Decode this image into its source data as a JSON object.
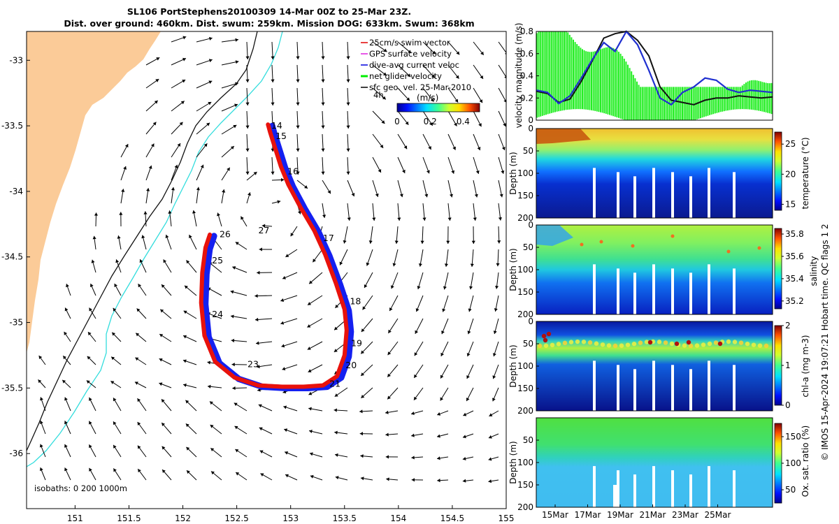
{
  "header": {
    "title_line1": "SL106 PortStephens20100309 14-Mar 00Z to 25-Mar 23Z.",
    "title_line2": "Dist. over ground: 460km. Dist. swum: 259km. Mission DOG: 633km. Swum: 368km"
  },
  "credit": "© IMOS 15-Apr-2024 19:07:21 Hobart time. QC flags 1  2",
  "colors": {
    "land": "#fbcb98",
    "track_red": "#e8120c",
    "track_blue": "#1420f0",
    "velocity_green": "#22ee22",
    "velocity_blue": "#2030d0",
    "velocity_black": "#111111",
    "isobath_200": "#111111",
    "isobath_1000": "#33dddd"
  },
  "chart_data": [
    {
      "type": "map",
      "xlim": [
        150.55,
        155.0
      ],
      "ylim": [
        -36.42,
        -32.78
      ],
      "xticks": [
        "151",
        "151.5",
        "152",
        "152.5",
        "153",
        "153.5",
        "154",
        "154.5",
        "155"
      ],
      "yticks": [
        "-33",
        "-33.5",
        "-34",
        "-34.5",
        "-35",
        "-35.5",
        "-36"
      ],
      "legend": [
        {
          "label": "25cm/s swim vector",
          "color": "#e00000"
        },
        {
          "label": "GPS surface velocity",
          "color": "#e020e0"
        },
        {
          "label": "dive-avg current veloc",
          "color": "#0000dd"
        },
        {
          "label": "net glider velocity",
          "color": "#00ee00"
        },
        {
          "label": "sfc geo. vel. 25-Mar-2010",
          "color": "#000000"
        }
      ],
      "legend_extra": "4h",
      "colorbar": {
        "label": "(m/s)",
        "ticks": [
          "0",
          "0.2",
          "0.4"
        ],
        "range": [
          0,
          0.5
        ]
      },
      "isobaths_label": "isobaths: 0   200  1000m",
      "track": [
        [
          152.79,
          -33.49
        ],
        [
          152.81,
          -33.55
        ],
        [
          152.86,
          -33.68
        ],
        [
          152.91,
          -33.81
        ],
        [
          152.98,
          -33.95
        ],
        [
          153.09,
          -34.12
        ],
        [
          153.22,
          -34.3
        ],
        [
          153.32,
          -34.48
        ],
        [
          153.42,
          -34.7
        ],
        [
          153.5,
          -34.9
        ],
        [
          153.52,
          -35.06
        ],
        [
          153.5,
          -35.25
        ],
        [
          153.43,
          -35.41
        ],
        [
          153.3,
          -35.48
        ],
        [
          153.12,
          -35.49
        ],
        [
          152.92,
          -35.49
        ],
        [
          152.7,
          -35.48
        ],
        [
          152.48,
          -35.42
        ],
        [
          152.3,
          -35.3
        ],
        [
          152.2,
          -35.1
        ],
        [
          152.17,
          -34.85
        ],
        [
          152.18,
          -34.62
        ],
        [
          152.21,
          -34.43
        ],
        [
          152.25,
          -34.33
        ]
      ],
      "day_labels": [
        {
          "day": "14",
          "lon": 152.82,
          "lat": -33.52
        },
        {
          "day": "15",
          "lon": 152.86,
          "lat": -33.6
        },
        {
          "day": "16",
          "lon": 152.97,
          "lat": -33.87
        },
        {
          "day": "17",
          "lon": 153.3,
          "lat": -34.38
        },
        {
          "day": "18",
          "lon": 153.55,
          "lat": -34.86
        },
        {
          "day": "19",
          "lon": 153.56,
          "lat": -35.18
        },
        {
          "day": "20",
          "lon": 153.51,
          "lat": -35.35
        },
        {
          "day": "21",
          "lon": 153.36,
          "lat": -35.49
        },
        {
          "day": "23",
          "lon": 152.6,
          "lat": -35.34
        },
        {
          "day": "24",
          "lon": 152.27,
          "lat": -34.96
        },
        {
          "day": "25",
          "lon": 152.27,
          "lat": -34.55
        },
        {
          "day": "26",
          "lon": 152.34,
          "lat": -34.35
        },
        {
          "day": "27",
          "lon": 152.7,
          "lat": -34.32
        }
      ]
    },
    {
      "type": "line",
      "ylabel": "velocity magnitude (m/s)",
      "xlim": [
        14,
        26
      ],
      "ylim": [
        0,
        0.8
      ],
      "yticks": [
        "0",
        "0.2",
        "0.4",
        "0.6",
        "0.8"
      ],
      "series": [
        {
          "color": "#2030d0",
          "values": [
            0.27,
            0.25,
            0.15,
            0.22,
            0.38,
            0.55,
            0.7,
            0.62,
            0.8,
            0.68,
            0.45,
            0.2,
            0.14,
            0.25,
            0.3,
            0.38,
            0.36,
            0.28,
            0.25,
            0.27,
            0.26,
            0.25
          ]
        },
        {
          "color": "#111111",
          "values": [
            0.26,
            0.24,
            0.16,
            0.19,
            0.35,
            0.54,
            0.74,
            0.78,
            0.8,
            0.72,
            0.58,
            0.3,
            0.18,
            0.16,
            0.14,
            0.18,
            0.2,
            0.2,
            0.22,
            0.21,
            0.2,
            0.21
          ]
        }
      ]
    },
    {
      "type": "heatmap",
      "ylabel": "Depth (m)",
      "cbar_label": "temperature (°C)",
      "yticks": [
        "0",
        "50",
        "100",
        "150",
        "200"
      ],
      "cticks": [
        "15",
        "20",
        "25"
      ]
    },
    {
      "type": "heatmap",
      "ylabel": "Depth (m)",
      "cbar_label": "salinity",
      "yticks": [
        "0",
        "50",
        "100",
        "150",
        "200"
      ],
      "cticks": [
        "35.2",
        "35.4",
        "35.6",
        "35.8"
      ]
    },
    {
      "type": "heatmap",
      "ylabel": "Depth (m)",
      "cbar_label": "chl-a (mg m-3)",
      "yticks": [
        "0",
        "50",
        "100",
        "150",
        "200"
      ],
      "cticks": [
        "0",
        "1",
        "2"
      ]
    },
    {
      "type": "heatmap",
      "ylabel": "Depth (m)",
      "cbar_label": "Ox. sat. ratio (%)",
      "yticks": [
        "50",
        "100",
        "150",
        "200"
      ],
      "cticks": [
        "50",
        "100",
        "150"
      ],
      "xticks": [
        "15Mar",
        "17Mar",
        "19Mar",
        "21Mar",
        "23Mar",
        "25Mar"
      ]
    }
  ]
}
